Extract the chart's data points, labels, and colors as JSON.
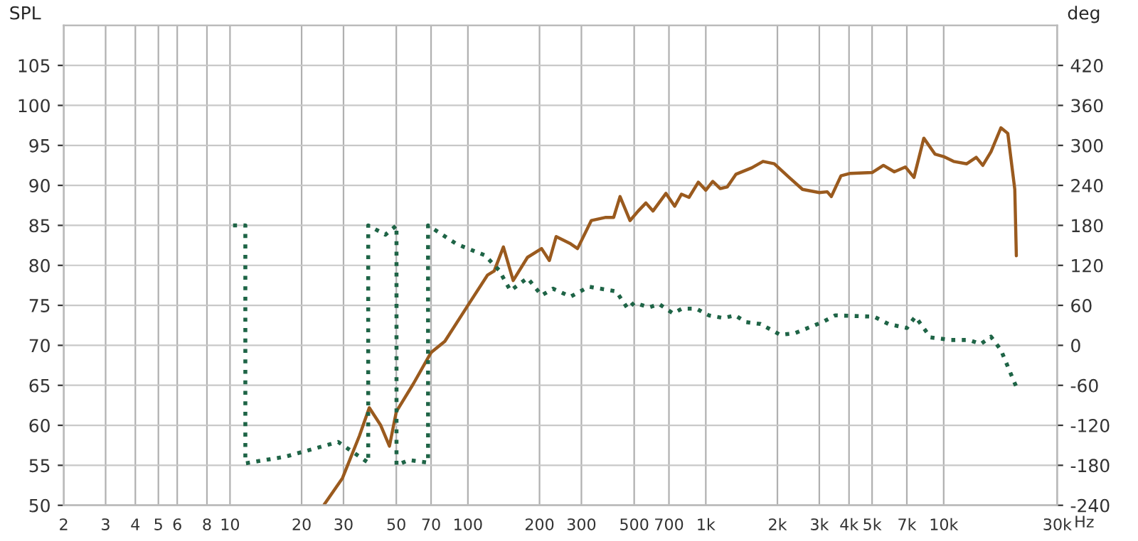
{
  "chart_data": {
    "type": "line",
    "ylabel": "SPL",
    "y2label": "deg",
    "log": "x",
    "xlim": [
      2,
      30000
    ],
    "xticks": [
      2,
      3,
      4,
      5,
      6,
      8,
      10,
      20,
      30,
      50,
      70,
      100,
      200,
      300,
      500,
      700,
      {
        "value": 1000,
        "label": "1k"
      },
      {
        "value": 2000,
        "label": "2k"
      },
      {
        "value": 3000,
        "label": "3k"
      },
      {
        "value": 4000,
        "label": "4k"
      },
      {
        "value": 5000,
        "label": "5k"
      },
      {
        "value": 7000,
        "label": "7k"
      },
      {
        "value": 10000,
        "label": "10k"
      },
      {
        "value": 30000,
        "label": "30k"
      }
    ],
    "xlabel": "Hz",
    "ylim": [
      50,
      110
    ],
    "yticks": [
      50,
      55,
      60,
      65,
      70,
      75,
      80,
      85,
      90,
      95,
      100,
      105
    ],
    "y2lim": [
      -240,
      480
    ],
    "y2ticks": [
      -240,
      -180,
      -120,
      -60,
      0,
      60,
      120,
      180,
      240,
      300,
      360,
      420
    ],
    "grid": true,
    "series": [
      {
        "color": "#9a5a1e",
        "line_style": "solid",
        "x": [
          24.9,
          29.7,
          35,
          38.5,
          43,
          46.8,
          50,
          59,
          70,
          80,
          100,
          121,
          129,
          141,
          155,
          178,
          204,
          220,
          235,
          270,
          289,
          330,
          380,
          410,
          436,
          480,
          520,
          560,
          600,
          680,
          740,
          790,
          850,
          930,
          1000,
          1070,
          1150,
          1230,
          1340,
          1560,
          1740,
          1940,
          2240,
          2550,
          3000,
          3240,
          3370,
          3700,
          4050,
          5000,
          5580,
          6200,
          6900,
          7500,
          8250,
          9200,
          10000,
          11000,
          12500,
          13700,
          14600,
          15800,
          17400,
          18600,
          19900,
          20200
        ],
        "values": [
          50.1,
          53.4,
          58.7,
          62.2,
          60,
          57.4,
          61.7,
          65.2,
          69.1,
          70.5,
          75,
          78.8,
          79.3,
          82.3,
          78.1,
          81,
          82.1,
          80.6,
          83.6,
          82.7,
          82.1,
          85.6,
          86,
          86,
          88.6,
          85.6,
          86.8,
          87.8,
          86.8,
          89,
          87.4,
          88.9,
          88.5,
          90.4,
          89.4,
          90.5,
          89.6,
          89.8,
          91.4,
          92.2,
          93,
          92.7,
          91,
          89.5,
          89.1,
          89.2,
          88.6,
          91.2,
          91.5,
          91.6,
          92.5,
          91.7,
          92.3,
          91,
          95.9,
          93.9,
          93.6,
          93,
          92.7,
          93.5,
          92.5,
          94.2,
          97.2,
          96.5,
          89.5,
          81.2
        ]
      },
      {
        "color": "#1e6446",
        "axis": "y2",
        "line_style": "dotted",
        "x": [
          10.3,
          11.6,
          11.6,
          17.1,
          28.5,
          38.1,
          38.1,
          45,
          50.1,
          50.1,
          56.6,
          68,
          68,
          89.6,
          118,
          135,
          151,
          178,
          204,
          228,
          270,
          323,
          420,
          470,
          500,
          577,
          636,
          728,
          794,
          912,
          1030,
          1185,
          1330,
          1470,
          1700,
          2050,
          2360,
          3100,
          3500,
          5100,
          5860,
          7000,
          7600,
          8800,
          10700,
          12800,
          14300,
          15800,
          17400,
          19900,
          20200
        ],
        "values": [
          180,
          180,
          -177,
          -167,
          -145,
          -176,
          180,
          166,
          180,
          -180,
          -172,
          -176,
          180,
          152,
          135,
          113,
          82,
          101,
          75,
          85,
          73,
          88,
          81,
          55,
          64,
          57,
          62,
          48,
          55,
          55,
          45,
          41,
          45,
          35,
          32,
          16,
          18,
          35,
          45,
          43,
          32,
          26,
          43,
          12,
          8,
          8,
          2,
          13,
          -7,
          -57,
          -62
        ]
      }
    ]
  }
}
